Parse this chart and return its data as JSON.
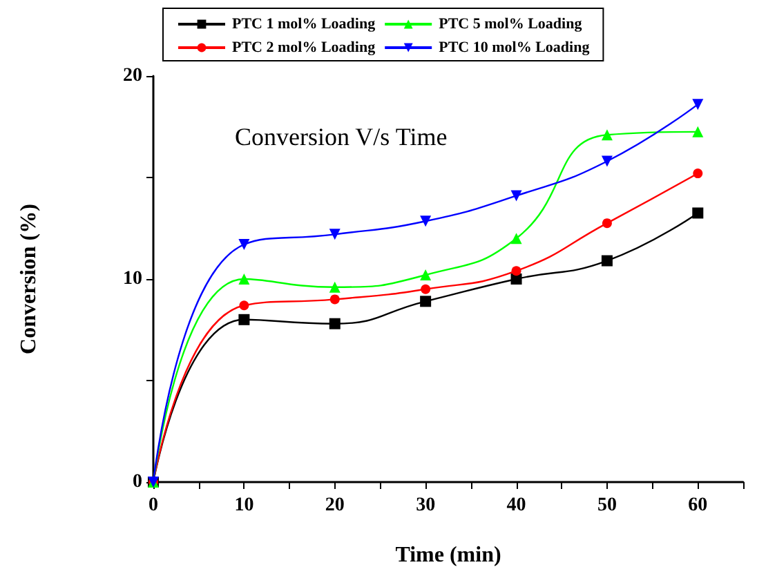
{
  "chart_data": {
    "type": "line",
    "title": "Conversion V/s Time",
    "xlabel": "Time (min)",
    "ylabel": "Conversion (%)",
    "x": [
      0,
      10,
      20,
      30,
      40,
      50,
      60
    ],
    "series": [
      {
        "name": "PTC 1 mol% Loading",
        "color": "#000000",
        "marker": "square",
        "values": [
          0,
          8.0,
          7.8,
          8.9,
          10.0,
          10.9,
          13.25
        ]
      },
      {
        "name": "PTC 2 mol% Loading",
        "color": "#ff0000",
        "marker": "circle",
        "values": [
          0,
          8.7,
          9.0,
          9.5,
          10.4,
          12.75,
          15.2
        ]
      },
      {
        "name": "PTC 5 mol% Loading",
        "color": "#00ff00",
        "marker": "triangle",
        "values": [
          0,
          10.0,
          9.6,
          10.2,
          12.0,
          17.1,
          17.25
        ]
      },
      {
        "name": "PTC 10 mol% Loading",
        "color": "#0000ff",
        "marker": "triangle-down",
        "values": [
          0,
          11.7,
          12.2,
          12.85,
          14.1,
          15.8,
          18.6
        ]
      }
    ],
    "xlim": [
      0,
      65
    ],
    "xticks": [
      0,
      {
        "value": 5,
        "label": null
      },
      10,
      {
        "value": 15,
        "label": null
      },
      20,
      {
        "value": 25,
        "label": null
      },
      30,
      {
        "value": 35,
        "label": null
      },
      40,
      {
        "value": 45,
        "label": null
      },
      50,
      {
        "value": 55,
        "label": null
      },
      60,
      {
        "value": 65,
        "label": null
      }
    ],
    "ylim": [
      0,
      20
    ],
    "yticks": [
      0,
      {
        "value": 5,
        "label": null
      },
      10,
      {
        "value": 15,
        "label": null
      },
      20
    ],
    "grid": false,
    "legend": "top",
    "line_style": "solid"
  }
}
